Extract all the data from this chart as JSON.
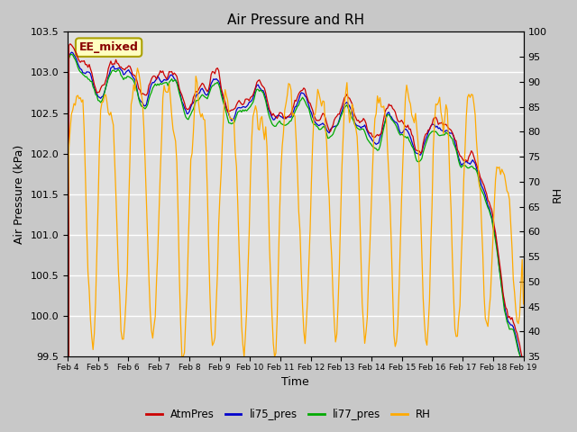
{
  "title": "Air Pressure and RH",
  "xlabel": "Time",
  "ylabel_left": "Air Pressure (kPa)",
  "ylabel_right": "RH",
  "annotation": "EE_mixed",
  "ylim_left": [
    99.5,
    103.5
  ],
  "ylim_right": [
    35,
    100
  ],
  "yticks_left": [
    99.5,
    100.0,
    100.5,
    101.0,
    101.5,
    102.0,
    102.5,
    103.0,
    103.5
  ],
  "yticks_right": [
    35,
    40,
    45,
    50,
    55,
    60,
    65,
    70,
    75,
    80,
    85,
    90,
    95,
    100
  ],
  "xtick_labels": [
    "Feb 4",
    "Feb 5",
    "Feb 6",
    "Feb 7",
    "Feb 8",
    "Feb 9",
    "Feb 10",
    "Feb 11",
    "Feb 12",
    "Feb 13",
    "Feb 14",
    "Feb 15",
    "Feb 16",
    "Feb 17",
    "Feb 18",
    "Feb 19"
  ],
  "colors": {
    "AtmPres": "#cc0000",
    "li75_pres": "#0000cc",
    "li77_pres": "#00aa00",
    "RH": "#ffaa00"
  },
  "background_color": "#c8c8c8",
  "plot_bg_color": "#e0e0e0",
  "n_days": 15,
  "n_points": 360,
  "seed": 42
}
